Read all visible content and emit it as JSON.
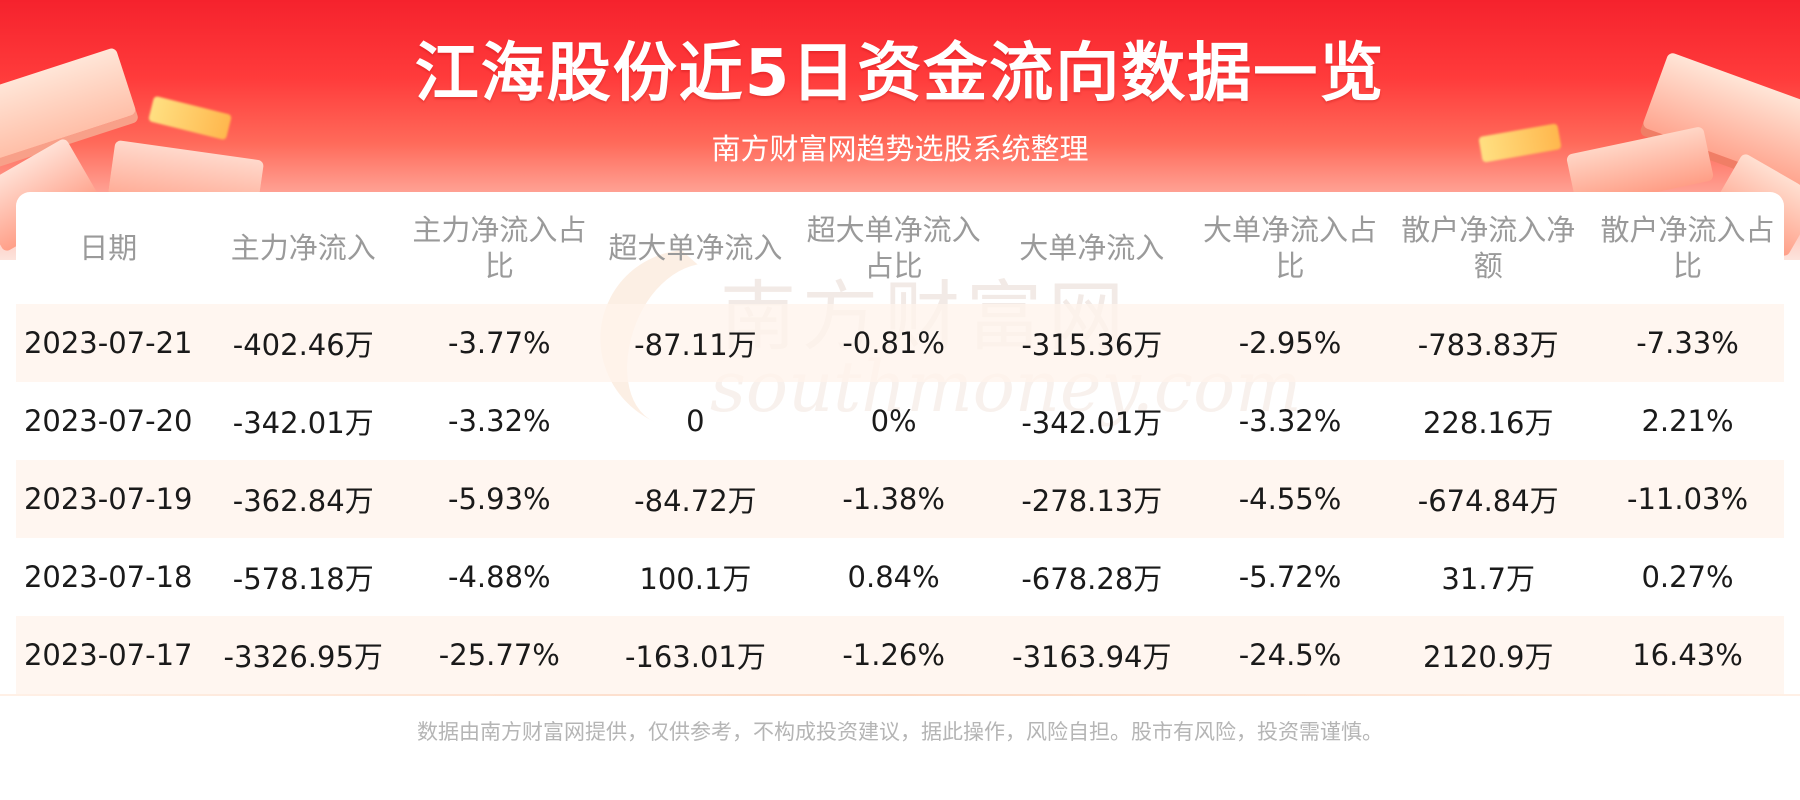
{
  "header": {
    "title": "江海股份近5日资金流向数据一览",
    "subtitle": "南方财富网趋势选股系统整理"
  },
  "table": {
    "columns": [
      "日期",
      "主力净流入",
      "主力净流入占比",
      "超大单净流入",
      "超大单净流入占比",
      "大单净流入",
      "大单净流入占比",
      "散户净流入净额",
      "散户净流入占比"
    ],
    "rows": [
      [
        "2023-07-21",
        "-402.46万",
        "-3.77%",
        "-87.11万",
        "-0.81%",
        "-315.36万",
        "-2.95%",
        "-783.83万",
        "-7.33%"
      ],
      [
        "2023-07-20",
        "-342.01万",
        "-3.32%",
        "0",
        "0%",
        "-342.01万",
        "-3.32%",
        "228.16万",
        "2.21%"
      ],
      [
        "2023-07-19",
        "-362.84万",
        "-5.93%",
        "-84.72万",
        "-1.38%",
        "-278.13万",
        "-4.55%",
        "-674.84万",
        "-11.03%"
      ],
      [
        "2023-07-18",
        "-578.18万",
        "-4.88%",
        "100.1万",
        "0.84%",
        "-678.28万",
        "-5.72%",
        "31.7万",
        "0.27%"
      ],
      [
        "2023-07-17",
        "-3326.95万",
        "-25.77%",
        "-163.01万",
        "-1.26%",
        "-3163.94万",
        "-24.5%",
        "2120.9万",
        "16.43%"
      ]
    ]
  },
  "watermark": {
    "cn": "南方财富网",
    "en": "southmoney.com"
  },
  "footer": {
    "disclaimer": "数据由南方财富网提供，仅供参考，不构成投资建议，据此操作，风险自担。股市有风险，投资需谨慎。"
  },
  "colors": {
    "banner_red": "#f5222d",
    "row_tint": "#fff4ec",
    "header_text": "#9a9a9a"
  }
}
